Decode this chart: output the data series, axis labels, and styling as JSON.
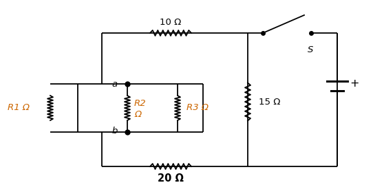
{
  "bg_color": "#ffffff",
  "line_color": "#000000",
  "text_color_orange": "#cc6600",
  "text_color_black": "#000000",
  "labels": {
    "R1": "R1 Ω",
    "R2_line1": "R2",
    "R2_line2": "Ω",
    "R3": "R3 Ω",
    "10ohm": "10 Ω",
    "15ohm": "15 Ω",
    "20ohm": "20 Ω",
    "S": "S",
    "a": "a",
    "b": "b",
    "plus": "+"
  },
  "figsize": [
    5.42,
    2.85
  ],
  "dpi": 100
}
